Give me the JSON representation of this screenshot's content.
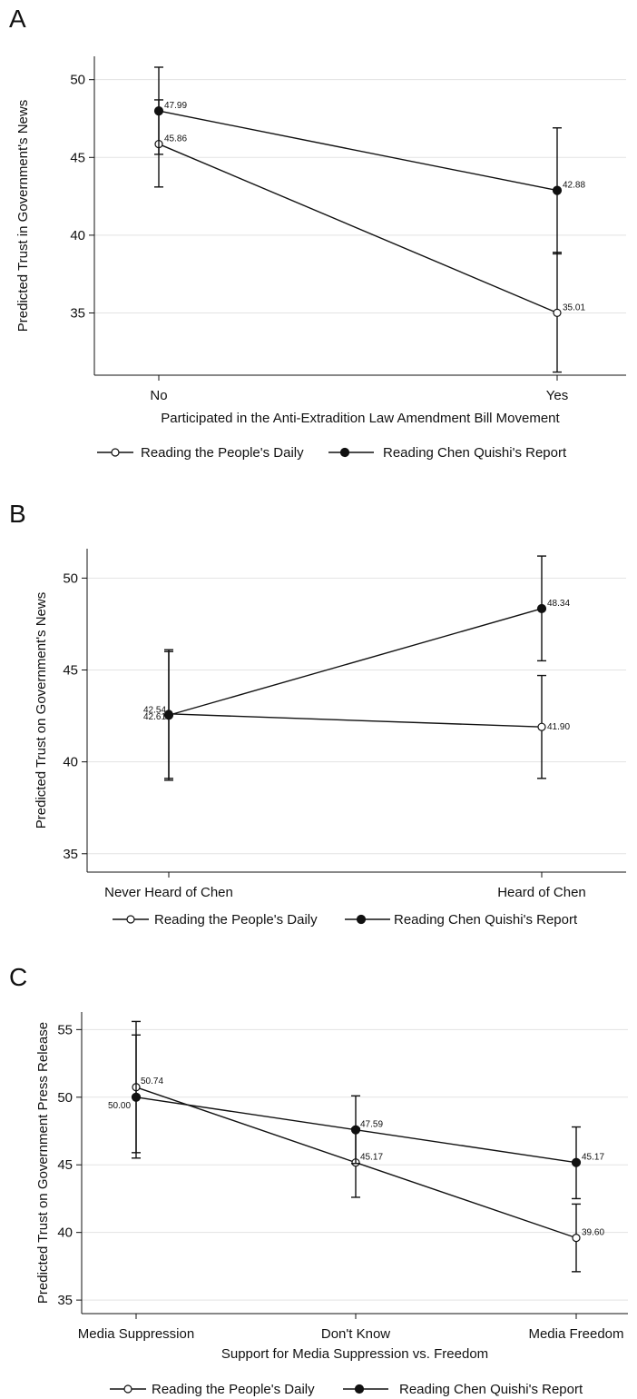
{
  "chart_data": [
    {
      "panel": "A",
      "type": "line",
      "categories": [
        "No",
        "Yes"
      ],
      "xlabel": "Participated in the Anti-Extradition Law Amendment Bill Movement",
      "ylabel": "Predicted Trust in Government's News",
      "ylim": [
        31,
        51.5
      ],
      "yticks": [
        35,
        40,
        45,
        50
      ],
      "grid": true,
      "legend": "bottom",
      "series": [
        {
          "name": "Reading the People's Daily",
          "marker": "hollow",
          "values": [
            45.86,
            35.01
          ],
          "labels": [
            "45.86",
            "35.01"
          ],
          "ci_low": [
            43.1,
            31.2
          ],
          "ci_high": [
            48.7,
            38.9
          ]
        },
        {
          "name": "Reading Chen Quishi's Report",
          "marker": "filled",
          "values": [
            47.99,
            42.88
          ],
          "labels": [
            "47.99",
            "42.88"
          ],
          "ci_low": [
            45.2,
            38.8
          ],
          "ci_high": [
            50.8,
            46.9
          ]
        }
      ]
    },
    {
      "panel": "B",
      "type": "line",
      "categories": [
        "Never Heard of Chen",
        "Heard of Chen"
      ],
      "xlabel": "",
      "ylabel": "Predicted Trust on Government's News",
      "ylim": [
        34,
        51.6
      ],
      "yticks": [
        35,
        40,
        45,
        50
      ],
      "grid": true,
      "legend": "bottom",
      "series": [
        {
          "name": "Reading the People's Daily",
          "marker": "hollow",
          "values": [
            42.61,
            41.9
          ],
          "labels": [
            "42.61",
            "41.90"
          ],
          "ci_low": [
            39.1,
            39.1
          ],
          "ci_high": [
            46.1,
            44.7
          ]
        },
        {
          "name": "Reading Chen Quishi's Report",
          "marker": "filled",
          "values": [
            42.54,
            48.34
          ],
          "labels": [
            "42.54",
            "48.34"
          ],
          "ci_low": [
            39.0,
            45.5
          ],
          "ci_high": [
            46.0,
            51.2
          ]
        }
      ]
    },
    {
      "panel": "C",
      "type": "line",
      "categories": [
        "Media Suppression",
        "Don't Know",
        "Media Freedom"
      ],
      "xlabel": "Support for Media Suppression vs. Freedom",
      "ylabel": "Predicted Trust on Government Press Release",
      "ylim": [
        34,
        56.3
      ],
      "yticks": [
        35,
        40,
        45,
        50,
        55
      ],
      "grid": true,
      "legend": "bottom",
      "series": [
        {
          "name": "Reading the People's Daily",
          "marker": "hollow",
          "values": [
            50.74,
            45.17,
            39.6
          ],
          "labels": [
            "50.74",
            "45.17",
            "39.60"
          ],
          "ci_low": [
            45.9,
            42.6,
            37.1
          ],
          "ci_high": [
            55.6,
            47.7,
            42.1
          ]
        },
        {
          "name": "Reading Chen Quishi's Report",
          "marker": "filled",
          "values": [
            50.0,
            47.59,
            45.17
          ],
          "labels": [
            "50.00",
            "47.59",
            "45.17"
          ],
          "ci_low": [
            45.5,
            45.1,
            42.5
          ],
          "ci_high": [
            54.6,
            50.1,
            47.8
          ]
        }
      ]
    }
  ]
}
